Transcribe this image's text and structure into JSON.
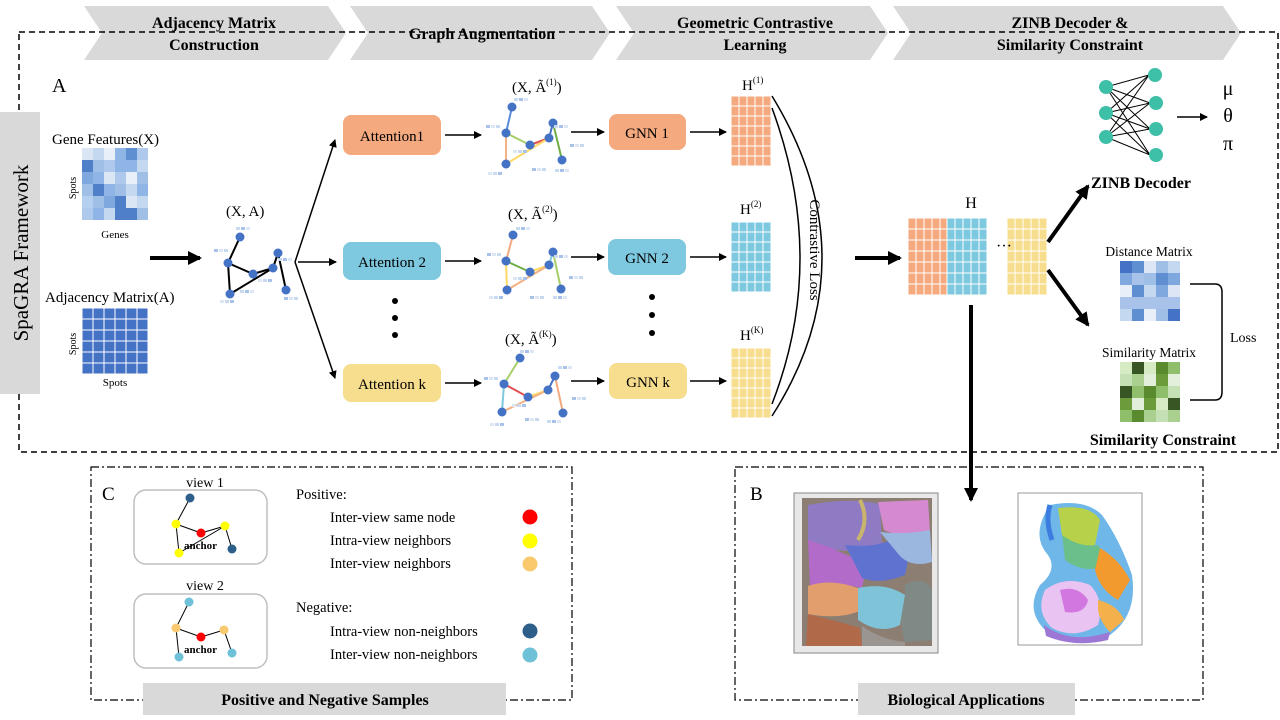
{
  "stages": [
    {
      "line1": "Adjacency Matrix",
      "line2": "Construction"
    },
    {
      "line1": "Graph Augmentation",
      "line2": ""
    },
    {
      "line1": "Geometric Contrastive",
      "line2": "Learning"
    },
    {
      "line1": "ZINB Decoder  &",
      "line2": "Similarity Constraint"
    }
  ],
  "framework_label": "SpaGRA Framework",
  "panel_a": {
    "label": "A",
    "gene_features": "Gene Features(X)",
    "genes": "Genes",
    "spots": "Spots",
    "adjacency_matrix": "Adjacency Matrix(A)",
    "input_graph": "(X, A)",
    "attention": [
      "Attention1",
      "Attention 2",
      "Attention k"
    ],
    "augmented": [
      {
        "base": "(X, Ã",
        "sup": "(1)",
        "tail": ")"
      },
      {
        "base": "(X, Ã",
        "sup": "(2)",
        "tail": ")"
      },
      {
        "base": "(X, Ã",
        "sup": "(K)",
        "tail": ")"
      }
    ],
    "gnn": [
      "GNN 1",
      "GNN 2",
      "GNN k"
    ],
    "embeddings": [
      {
        "base": "H",
        "sup": "(1)"
      },
      {
        "base": "H",
        "sup": "(2)"
      },
      {
        "base": "H",
        "sup": "(K)"
      }
    ],
    "contrastive_loss": "Contrastive Loss",
    "concat_label": "H",
    "ellipsis": "···",
    "zinb_params": [
      "μ",
      "θ",
      "π"
    ],
    "zinb_decoder": "ZINB Decoder",
    "distance_matrix": "Distance Matrix",
    "similarity_matrix": "Similarity Matrix",
    "loss": "Loss",
    "similarity_constraint": "Similarity Constraint"
  },
  "panel_c": {
    "label": "C",
    "view1": "view 1",
    "view2": "view 2",
    "anchor": "anchor",
    "positive_title": "Positive:",
    "positive_items": [
      "Inter-view same node",
      "Intra-view neighbors",
      "Inter-view neighbors"
    ],
    "negative_title": "Negative:",
    "negative_items": [
      "Intra-view non-neighbors",
      "Inter-view non-neighbors"
    ],
    "footer": "Positive and Negative Samples"
  },
  "panel_b": {
    "label": "B",
    "footer": "Biological Applications"
  },
  "colors": {
    "attention": [
      "#f4a97f",
      "#7ec9e0",
      "#f7dd8e"
    ],
    "h_orange": "#f4a97f",
    "h_blue": "#7ec9e0",
    "h_yellow": "#f7dd8e",
    "node": "#4472c4",
    "zinb_node": "#3dbfa8",
    "red": "#ff0000",
    "yellow": "#ffff00",
    "light_orange": "#f9c96e",
    "dark_blue": "#2e5f8a",
    "light_blue": "#6ec1d6"
  }
}
